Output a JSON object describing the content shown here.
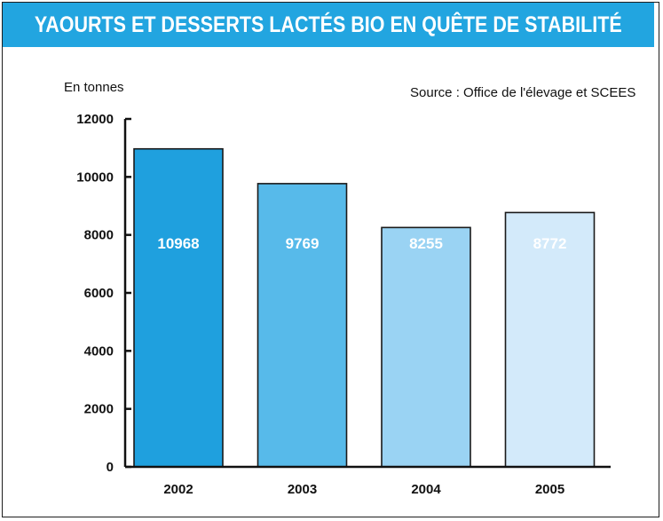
{
  "title": "YAOURTS ET DESSERTS LACTÉS BIO EN QUÊTE DE STABILITÉ",
  "unit_label": "En tonnes",
  "source": "Source : Office de l'élevage et SCEES",
  "colors": {
    "banner": "#22a5e0",
    "bars": [
      "#1fa0de",
      "#57baea",
      "#9ad3f3",
      "#d3eafa"
    ]
  },
  "chart_data": {
    "type": "bar",
    "title": "YAOURTS ET DESSERTS LACTÉS BIO EN QUÊTE DE STABILITÉ",
    "ylabel": "En tonnes",
    "categories": [
      "2002",
      "2003",
      "2004",
      "2005"
    ],
    "values": [
      10968,
      9769,
      8255,
      8772
    ],
    "data_labels": [
      "10968",
      "9769",
      "8255",
      "8772"
    ],
    "yticks": [
      0,
      2000,
      4000,
      6000,
      8000,
      10000,
      12000
    ],
    "ytick_labels": [
      "0",
      "2000",
      "4000",
      "6000",
      "8000",
      "10000",
      "12000"
    ],
    "ylim": [
      0,
      12000
    ],
    "grid": false,
    "legend": "none"
  }
}
